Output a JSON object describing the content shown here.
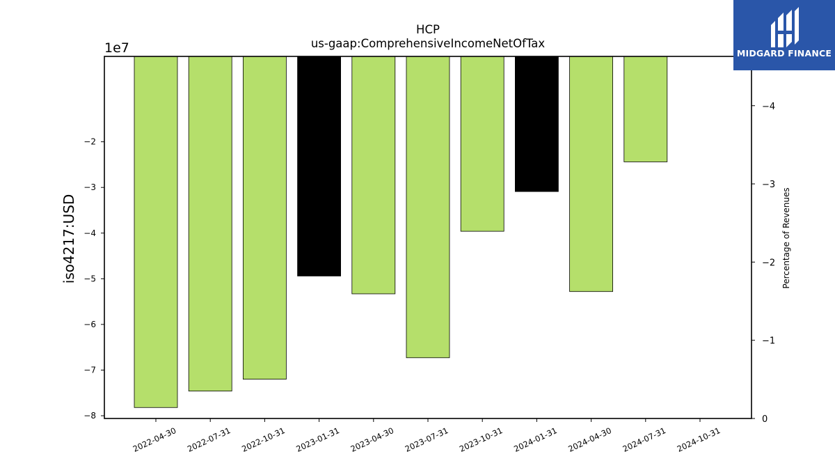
{
  "chart_data": {
    "type": "bar",
    "title": "HCP",
    "subtitle": "us-gaap:ComprehensiveIncomeNetOfTax",
    "ylabel": "iso4217:USD",
    "y_offset_label": "1e7",
    "y2label": "Percentage of Revenues",
    "categories": [
      "2022-04-30",
      "2022-07-31",
      "2022-10-31",
      "2023-01-31",
      "2023-04-30",
      "2023-07-31",
      "2023-10-31",
      "2024-01-31",
      "2024-04-30",
      "2024-07-31",
      "2024-10-31"
    ],
    "values": [
      -78200000,
      -74600000,
      -72000000,
      -49400000,
      -53300000,
      -67300000,
      -39600000,
      -30900000,
      -52800000,
      -24400000,
      null
    ],
    "bar_colors": [
      "#b5df6b",
      "#b5df6b",
      "#b5df6b",
      "#000000",
      "#b5df6b",
      "#b5df6b",
      "#b5df6b",
      "#000000",
      "#b5df6b",
      "#b5df6b",
      null
    ],
    "ylim": [
      -80600000,
      -1300000
    ],
    "yticks": [
      -80000000,
      -70000000,
      -60000000,
      -50000000,
      -40000000,
      -30000000,
      -20000000
    ],
    "ytick_labels": [
      "−8",
      "−7",
      "−6",
      "−5",
      "−4",
      "−3",
      "−2"
    ],
    "y2lim": [
      0,
      -4.63
    ],
    "y2ticks": [
      0,
      -1,
      -2,
      -3,
      -4
    ],
    "y2tick_labels": [
      "0",
      "−1",
      "−2",
      "−3",
      "−4"
    ],
    "grid": false
  },
  "logo": {
    "text": "MIDGARD FINANCE",
    "color": "#2a56a9"
  }
}
